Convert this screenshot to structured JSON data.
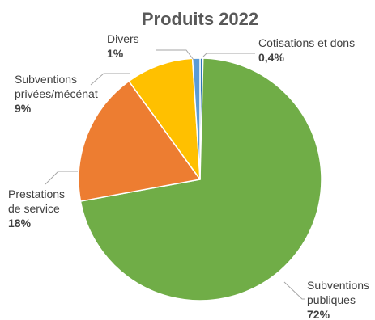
{
  "chart_data": {
    "type": "pie",
    "title": "Produits 2022",
    "slices": [
      {
        "name_lines": [
          "Cotisations et dons"
        ],
        "value_label": "0,4%",
        "value": 0.4,
        "color": "#2e75b6"
      },
      {
        "name_lines": [
          "Subventions",
          "publiques"
        ],
        "value_label": "72%",
        "value": 72,
        "color": "#70ad47"
      },
      {
        "name_lines": [
          "Prestations",
          "de service"
        ],
        "value_label": "18%",
        "value": 18,
        "color": "#ed7d31"
      },
      {
        "name_lines": [
          "Subventions",
          "privées/mécénat"
        ],
        "value_label": "9%",
        "value": 9,
        "color": "#ffc000"
      },
      {
        "name_lines": [
          "Divers"
        ],
        "value_label": "1%",
        "value": 1,
        "color": "#5b9bd5"
      }
    ]
  }
}
